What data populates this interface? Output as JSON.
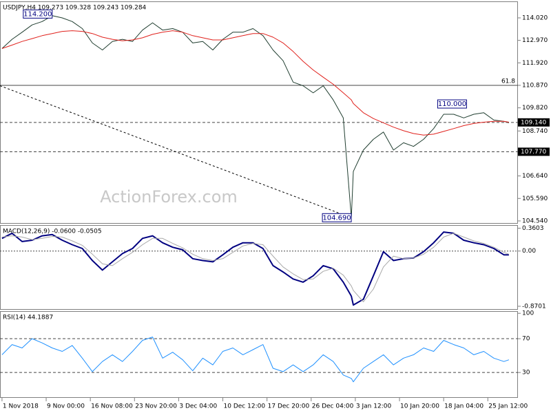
{
  "chart_data": [
    {
      "type": "line",
      "title": "USDJPY,H4  109.273 109.328 109.243 109.284",
      "watermark": "ActionForex.com",
      "xlim": [
        -2,
        514
      ],
      "ylim": [
        104.41,
        114.79
      ],
      "yticks": [
        {
          "value": 114.02,
          "label": "114.020"
        },
        {
          "value": 112.97,
          "label": "112.970"
        },
        {
          "value": 111.92,
          "label": "111.920"
        },
        {
          "value": 110.87,
          "label": "110.870"
        },
        {
          "value": 109.82,
          "label": "109.820"
        },
        {
          "value": 108.74,
          "label": "108.740"
        },
        {
          "value": 106.64,
          "label": "106.640"
        },
        {
          "value": 105.59,
          "label": "105.590"
        },
        {
          "value": 104.54,
          "label": "104.540"
        }
      ],
      "x": [
        0,
        10,
        20,
        30,
        40,
        50,
        60,
        70,
        80,
        90,
        100,
        110,
        120,
        130,
        140,
        150,
        160,
        170,
        180,
        190,
        200,
        210,
        220,
        230,
        240,
        250,
        260,
        270,
        280,
        290,
        300,
        310,
        320,
        330,
        340,
        348,
        350,
        360,
        370,
        380,
        390,
        400,
        410,
        420,
        430,
        440,
        450,
        460,
        470,
        480,
        490,
        500,
        505
      ],
      "series": [
        {
          "color": "#1f3d2f",
          "values": [
            112.59,
            113.02,
            113.35,
            113.69,
            113.85,
            114.12,
            114.02,
            113.85,
            113.52,
            112.85,
            112.52,
            112.92,
            113.02,
            112.92,
            113.45,
            113.79,
            113.45,
            113.52,
            113.35,
            112.85,
            112.92,
            112.52,
            113.02,
            113.35,
            113.35,
            113.52,
            113.19,
            112.52,
            112.02,
            111.02,
            110.85,
            110.52,
            110.85,
            110.19,
            109.35,
            104.69,
            106.85,
            107.85,
            108.35,
            108.69,
            107.85,
            108.19,
            108.02,
            108.35,
            108.85,
            109.52,
            109.52,
            109.35,
            109.52,
            109.59,
            109.25,
            109.19,
            109.12
          ]
        },
        {
          "color": "#e0201b",
          "values": [
            112.59,
            112.75,
            112.92,
            113.05,
            113.19,
            113.29,
            113.39,
            113.42,
            113.39,
            113.29,
            113.12,
            113.02,
            112.95,
            112.99,
            113.09,
            113.25,
            113.35,
            113.42,
            113.35,
            113.19,
            113.09,
            112.99,
            112.99,
            113.09,
            113.19,
            113.29,
            113.29,
            113.12,
            112.85,
            112.45,
            111.99,
            111.59,
            111.25,
            110.92,
            110.52,
            110.19,
            110.02,
            109.59,
            109.32,
            109.12,
            108.92,
            108.75,
            108.62,
            108.55,
            108.59,
            108.72,
            108.85,
            108.99,
            109.09,
            109.15,
            109.19,
            109.19,
            109.15
          ]
        }
      ],
      "levels": [
        {
          "value": 110.87,
          "label": "61.8",
          "style": "solid",
          "label_position": "inside"
        },
        {
          "value": 109.14,
          "label": "109.140",
          "style": "dashed",
          "label_position": "axis"
        },
        {
          "value": 107.77,
          "label": "107.770",
          "style": "dashed",
          "label_position": "axis"
        }
      ],
      "trendline": {
        "x": [
          -2,
          348
        ],
        "y": [
          110.85,
          104.69
        ]
      },
      "annotations": [
        {
          "label": "114.200",
          "x": 50,
          "y": 114.2,
          "align": "end"
        },
        {
          "label": "110.000",
          "x": 434,
          "y": 110.0,
          "align": "start"
        },
        {
          "label": "104.690",
          "x": 348,
          "y": 104.69,
          "align": "end"
        }
      ]
    },
    {
      "type": "line",
      "title": "MACD(12,26,9) -0.0600 -0.0505",
      "xlim": [
        -2,
        514
      ],
      "ylim": [
        -0.925,
        0.409
      ],
      "yticks": [
        0.3603,
        {
          "value": 0,
          "label": "0.00"
        },
        -0.8701
      ],
      "levels": [
        {
          "value": 0,
          "style": "dotted"
        }
      ],
      "x": [
        0,
        10,
        20,
        30,
        40,
        50,
        60,
        70,
        80,
        90,
        100,
        110,
        120,
        130,
        140,
        150,
        160,
        170,
        180,
        190,
        200,
        210,
        220,
        230,
        240,
        250,
        260,
        270,
        280,
        290,
        300,
        310,
        320,
        330,
        340,
        348,
        350,
        360,
        370,
        380,
        390,
        400,
        410,
        420,
        430,
        440,
        450,
        460,
        470,
        480,
        490,
        500,
        505
      ],
      "series": [
        {
          "color": "#000080",
          "width": 2,
          "values": [
            0.2,
            0.28,
            0.15,
            0.17,
            0.24,
            0.26,
            0.17,
            0.1,
            0.04,
            -0.15,
            -0.3,
            -0.17,
            -0.04,
            0.04,
            0.2,
            0.24,
            0.13,
            0.06,
            0.02,
            -0.12,
            -0.15,
            -0.17,
            -0.06,
            0.06,
            0.13,
            0.13,
            0.04,
            -0.23,
            -0.33,
            -0.44,
            -0.49,
            -0.39,
            -0.23,
            -0.28,
            -0.49,
            -0.71,
            -0.85,
            -0.76,
            -0.39,
            -0.01,
            -0.15,
            -0.12,
            -0.11,
            -0.01,
            0.13,
            0.3,
            0.28,
            0.17,
            0.13,
            0.1,
            0.04,
            -0.06,
            -0.06
          ]
        },
        {
          "color": "#a8a8a8",
          "width": 1,
          "values": [
            0.22,
            0.24,
            0.22,
            0.18,
            0.2,
            0.23,
            0.22,
            0.16,
            0.09,
            -0.05,
            -0.2,
            -0.23,
            -0.12,
            -0.02,
            0.1,
            0.2,
            0.2,
            0.12,
            0.05,
            -0.05,
            -0.12,
            -0.15,
            -0.12,
            -0.02,
            0.08,
            0.12,
            0.1,
            -0.08,
            -0.25,
            -0.36,
            -0.45,
            -0.44,
            -0.32,
            -0.27,
            -0.38,
            -0.55,
            -0.62,
            -0.8,
            -0.6,
            -0.25,
            -0.08,
            -0.12,
            -0.11,
            -0.05,
            0.06,
            0.22,
            0.28,
            0.22,
            0.16,
            0.12,
            0.06,
            -0.02,
            -0.05
          ]
        }
      ]
    },
    {
      "type": "line",
      "title": "RSI(14) 44.1887",
      "xlim": [
        -2,
        514
      ],
      "ylim": [
        0,
        102.6
      ],
      "yticks": [
        100,
        70,
        30
      ],
      "levels": [
        {
          "value": 70,
          "style": "dashed"
        },
        {
          "value": 30,
          "style": "dashed"
        }
      ],
      "x": [
        0,
        10,
        20,
        30,
        40,
        50,
        60,
        70,
        80,
        90,
        100,
        110,
        120,
        130,
        140,
        150,
        160,
        170,
        180,
        190,
        200,
        210,
        220,
        230,
        240,
        250,
        260,
        270,
        280,
        290,
        300,
        310,
        320,
        330,
        340,
        348,
        350,
        360,
        370,
        380,
        390,
        400,
        410,
        420,
        430,
        440,
        450,
        460,
        470,
        480,
        490,
        500,
        505
      ],
      "series": [
        {
          "color": "#1e90ff",
          "width": 1,
          "values": [
            51,
            63,
            59,
            70,
            65,
            59,
            55,
            62,
            47,
            31,
            43,
            51,
            43,
            55,
            68,
            72,
            47,
            54,
            45,
            32,
            47,
            39,
            55,
            59,
            51,
            57,
            63,
            35,
            31,
            39,
            31,
            39,
            51,
            43,
            27,
            23,
            19,
            35,
            43,
            51,
            39,
            47,
            51,
            59,
            55,
            68,
            63,
            59,
            51,
            55,
            47,
            43,
            45
          ]
        }
      ],
      "xticks": [
        {
          "value": 0,
          "label": "1 Nov 2018"
        },
        {
          "value": 44,
          "label": "9 Nov 00:00"
        },
        {
          "value": 88,
          "label": "16 Nov 08:00"
        },
        {
          "value": 132,
          "label": "23 Nov 20:00"
        },
        {
          "value": 176,
          "label": "3 Dec 04:00"
        },
        {
          "value": 220,
          "label": "10 Dec 12:00"
        },
        {
          "value": 264,
          "label": "17 Dec 20:00"
        },
        {
          "value": 308,
          "label": "26 Dec 04:00"
        },
        {
          "value": 352,
          "label": "3 Jan 12:00"
        },
        {
          "value": 396,
          "label": "10 Jan 20:00"
        },
        {
          "value": 440,
          "label": "18 Jan 04:00"
        },
        {
          "value": 484,
          "label": "25 Jan 12:00"
        }
      ]
    }
  ]
}
